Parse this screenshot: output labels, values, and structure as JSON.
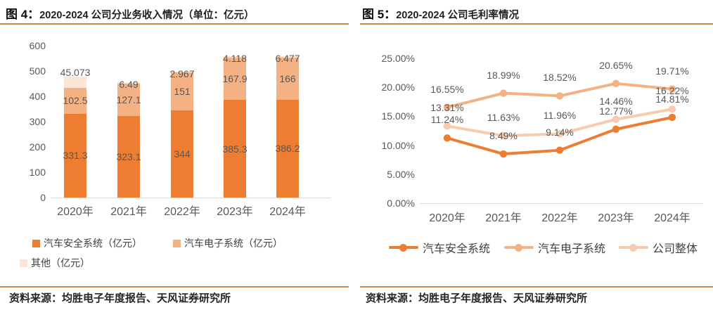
{
  "panel_left": {
    "figure_label": "图 4：",
    "title": "2020-2024 公司分业务收入情况（单位：亿元）",
    "source": "资料来源：均胜电子年度报告、天风证券研究所"
  },
  "panel_right": {
    "figure_label": "图 5：",
    "title": "2020-2024 公司毛利率情况",
    "source": "资料来源：均胜电子年度报告、天风证券研究所"
  },
  "colors": {
    "rule": "#c98a52",
    "safety": "#ED7D31",
    "electronics": "#F4B183",
    "other": "#FBE5D6",
    "overall": "#F8CBAD",
    "axis_text": "#595959",
    "axis_line": "#d9d9d9"
  },
  "chart_data": [
    {
      "type": "bar",
      "stacked": true,
      "title": "2020-2024 公司分业务收入情况（单位：亿元）",
      "categories": [
        "2020年",
        "2021年",
        "2022年",
        "2023年",
        "2024年"
      ],
      "series": [
        {
          "name": "汽车安全系统（亿元）",
          "color_key": "safety",
          "values": [
            331.3,
            323.1,
            344,
            385.3,
            386.2
          ]
        },
        {
          "name": "汽车电子系统（亿元）",
          "color_key": "electronics",
          "values": [
            102.5,
            127.1,
            151,
            167.9,
            166
          ]
        },
        {
          "name": "其他（亿元）",
          "color_key": "other",
          "values": [
            45.073,
            6.49,
            2.967,
            4.118,
            6.477
          ]
        }
      ],
      "ylabel": "",
      "ylim": [
        0,
        600
      ],
      "ytick_step": 100,
      "grid": false,
      "legend_position": "bottom"
    },
    {
      "type": "line",
      "title": "2020-2024 公司毛利率情况",
      "categories": [
        "2020年",
        "2021年",
        "2022年",
        "2023年",
        "2024年"
      ],
      "series": [
        {
          "name": "汽车安全系统",
          "color_key": "safety",
          "values": [
            11.24,
            8.49,
            9.14,
            12.77,
            14.81
          ]
        },
        {
          "name": "汽车电子系统",
          "color_key": "electronics",
          "values": [
            16.55,
            18.99,
            18.52,
            20.65,
            19.71
          ]
        },
        {
          "name": "公司整体",
          "color_key": "overall",
          "values": [
            13.31,
            11.63,
            11.96,
            14.46,
            16.22
          ]
        }
      ],
      "ylabel": "",
      "ylim": [
        0,
        25
      ],
      "ytick_step": 5,
      "ytick_format": "percent2",
      "grid": false,
      "legend_position": "bottom"
    }
  ]
}
